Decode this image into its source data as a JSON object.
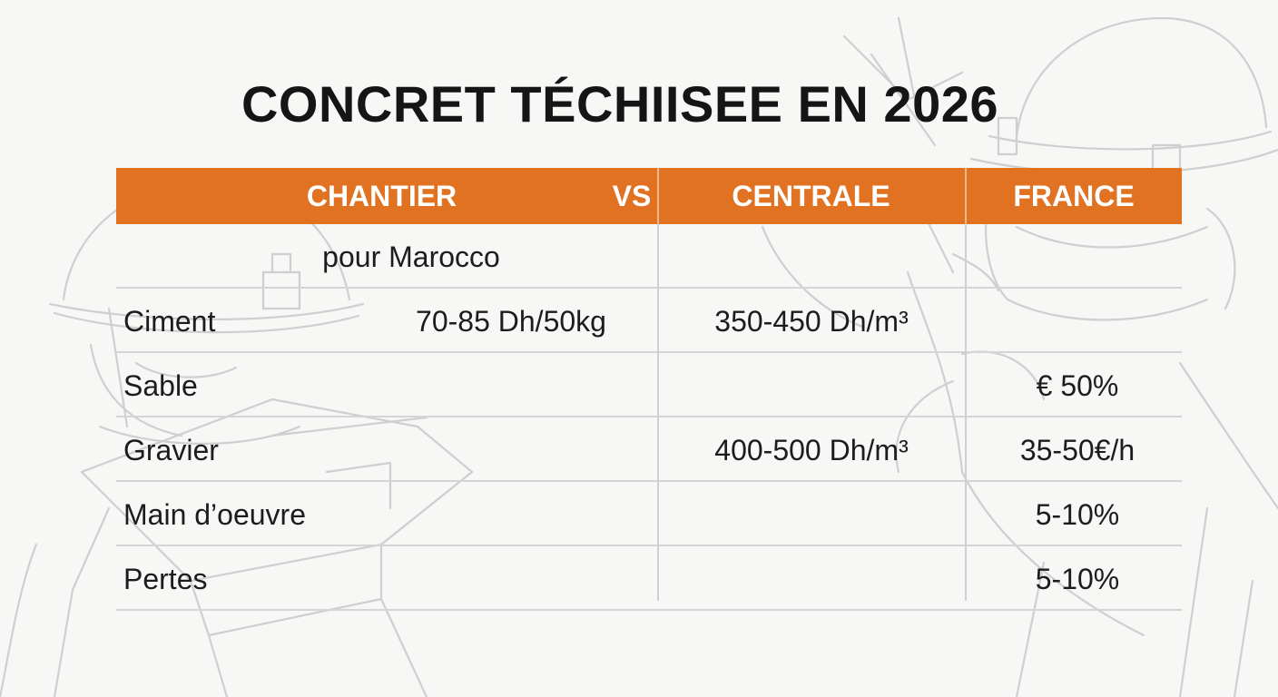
{
  "title": "CONCRET TÉCHIISEE EN 2026",
  "table": {
    "headers": {
      "chantier": "CHANTIER",
      "vs": "VS",
      "centrale": "CENTRALE",
      "france": "FRANCE"
    },
    "subtitle": "pour Marocco",
    "rows": [
      {
        "label": "Ciment",
        "chantier": "70-85 Dh/50kg",
        "centrale": "350-450 Dh/m³",
        "france": ""
      },
      {
        "label": "Sable",
        "chantier": "",
        "centrale": "",
        "france": "€ 50%"
      },
      {
        "label": "Gravier",
        "chantier": "",
        "centrale": "400-500 Dh/m³",
        "france": "35-50€/h"
      },
      {
        "label": "Main d’oeuvre",
        "chantier": "",
        "centrale": "",
        "france": "5-10%"
      },
      {
        "label": "Pertes",
        "chantier": "",
        "centrale": "",
        "france": "5-10%"
      }
    ]
  },
  "colors": {
    "header_bg": "#e07222",
    "header_text": "#ffffff",
    "text": "#1c1c1c",
    "background": "#f7f7f6",
    "sketch": "#cfcfcf"
  },
  "decoration": {
    "left": "worker-sketch",
    "right": "worker-sketch"
  }
}
